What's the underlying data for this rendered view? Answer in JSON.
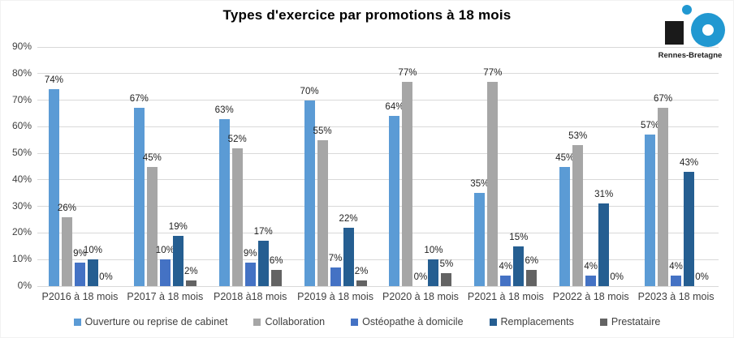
{
  "title": "Types d'exercice par promotions à 18 mois",
  "logo": {
    "text": "Rennes-Bretagne",
    "brand_blue": "#2198D1",
    "brand_black": "#1a1a1a"
  },
  "chart_data": {
    "type": "bar",
    "title": "Types d'exercice par promotions à 18 mois",
    "xlabel": "",
    "ylabel": "",
    "ylim": [
      0,
      90
    ],
    "grid": true,
    "legend_position": "bottom",
    "data_label_format": "{v}%",
    "y_ticks": [
      "0%",
      "10%",
      "20%",
      "30%",
      "40%",
      "50%",
      "60%",
      "70%",
      "80%",
      "90%"
    ],
    "categories": [
      "P2016 à 18 mois",
      "P2017 à 18 mois",
      "P2018 à18 mois",
      "P2019 à 18 mois",
      "P2020 à 18 mois",
      "P2021 à 18 mois",
      "P2022 à 18 mois",
      "P2023 à 18 mois"
    ],
    "series": [
      {
        "name": "Ouverture ou reprise de cabinet",
        "color": "#5B9BD5",
        "values": [
          74,
          67,
          63,
          70,
          64,
          35,
          45,
          57
        ]
      },
      {
        "name": "Collaboration",
        "color": "#A6A6A6",
        "values": [
          26,
          45,
          52,
          55,
          77,
          77,
          53,
          67
        ]
      },
      {
        "name": "Ostéopathe à domicile",
        "color": "#4472C4",
        "values": [
          9,
          10,
          9,
          7,
          0,
          4,
          4,
          4
        ]
      },
      {
        "name": "Remplacements",
        "color": "#255E91",
        "values": [
          10,
          19,
          17,
          22,
          10,
          15,
          31,
          43
        ]
      },
      {
        "name": "Prestataire",
        "color": "#636363",
        "values": [
          0,
          2,
          6,
          2,
          5,
          6,
          0,
          0
        ]
      }
    ],
    "gridline_color": "#D9D9D9"
  }
}
